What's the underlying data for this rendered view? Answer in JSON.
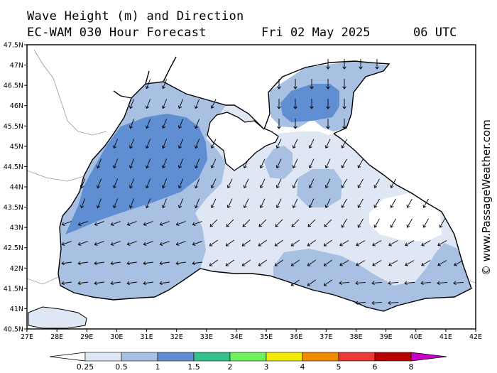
{
  "header": {
    "line1": "Wave Height (m) and Direction",
    "line2_model": "EC-WAM 030 Hour Forecast",
    "line2_date": "Fri 02 May 2025",
    "line2_time": "06 UTC"
  },
  "watermark": "© www.PassageWeather.com",
  "map": {
    "region": "Black Sea",
    "lat_labels": [
      "47.5N",
      "47N",
      "46.5N",
      "46N",
      "45.5N",
      "45N",
      "44.5N",
      "44N",
      "43.5N",
      "43N",
      "42.5N",
      "42N",
      "41.5N",
      "41N",
      "40.5N"
    ],
    "lon_labels": [
      "27E",
      "28E",
      "29E",
      "30E",
      "31E",
      "32E",
      "33E",
      "34E",
      "35E",
      "36E",
      "37E",
      "38E",
      "39E",
      "40E",
      "41E",
      "42E"
    ],
    "land_color": "#ffffff",
    "coast_color": "#000000",
    "arrow_color": "#000000"
  },
  "colorbar": {
    "values": [
      "0.25",
      "0.5",
      "1",
      "1.5",
      "2",
      "3",
      "4",
      "5",
      "6",
      "8"
    ],
    "colors": [
      "#ffffff",
      "#dfe6f4",
      "#a8c0e2",
      "#5f8fd2",
      "#35c08c",
      "#6ef25a",
      "#f2ea00",
      "#f28a00",
      "#ec3a3a",
      "#b80000",
      "#c800c8"
    ]
  }
}
